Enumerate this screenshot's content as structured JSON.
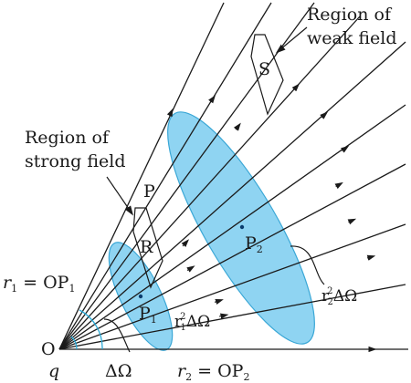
{
  "labels": {
    "region_weak_line1": "Region of",
    "region_weak_line2": "weak field",
    "region_strong_line1": "Region of",
    "region_strong_line2": "strong field",
    "patch_s": "S",
    "patch_p": "P",
    "patch_r": "R",
    "point_p2": "P",
    "point_p2_sub": "2",
    "point_p1": "P",
    "point_p1_sub": "1",
    "r1_eq_prefix": "r",
    "r1_eq_sub": "1",
    "r1_eq_suffix": " = OP",
    "r1_eq_sub2": "1",
    "origin": "O",
    "charge": "q",
    "solid_angle": "ΔΩ",
    "r2_eq_prefix": "r",
    "r2_eq_sub": "2",
    "r2_eq_suffix": " = OP",
    "r2_eq_sub2": "2",
    "area2_r": "r",
    "area2_sup": "2",
    "area2_sub": "2",
    "area2_omega": "ΔΩ",
    "area1_r": "r",
    "area1_sup": "2",
    "area1_sub": "1",
    "area1_omega": "ΔΩ"
  },
  "colors": {
    "ellipse_fill": "#8fd4f2",
    "ellipse_stroke": "#3aa7d6",
    "line": "#1a1a1a",
    "arc": "#2aa9d6",
    "point": "#0b3d6e"
  }
}
